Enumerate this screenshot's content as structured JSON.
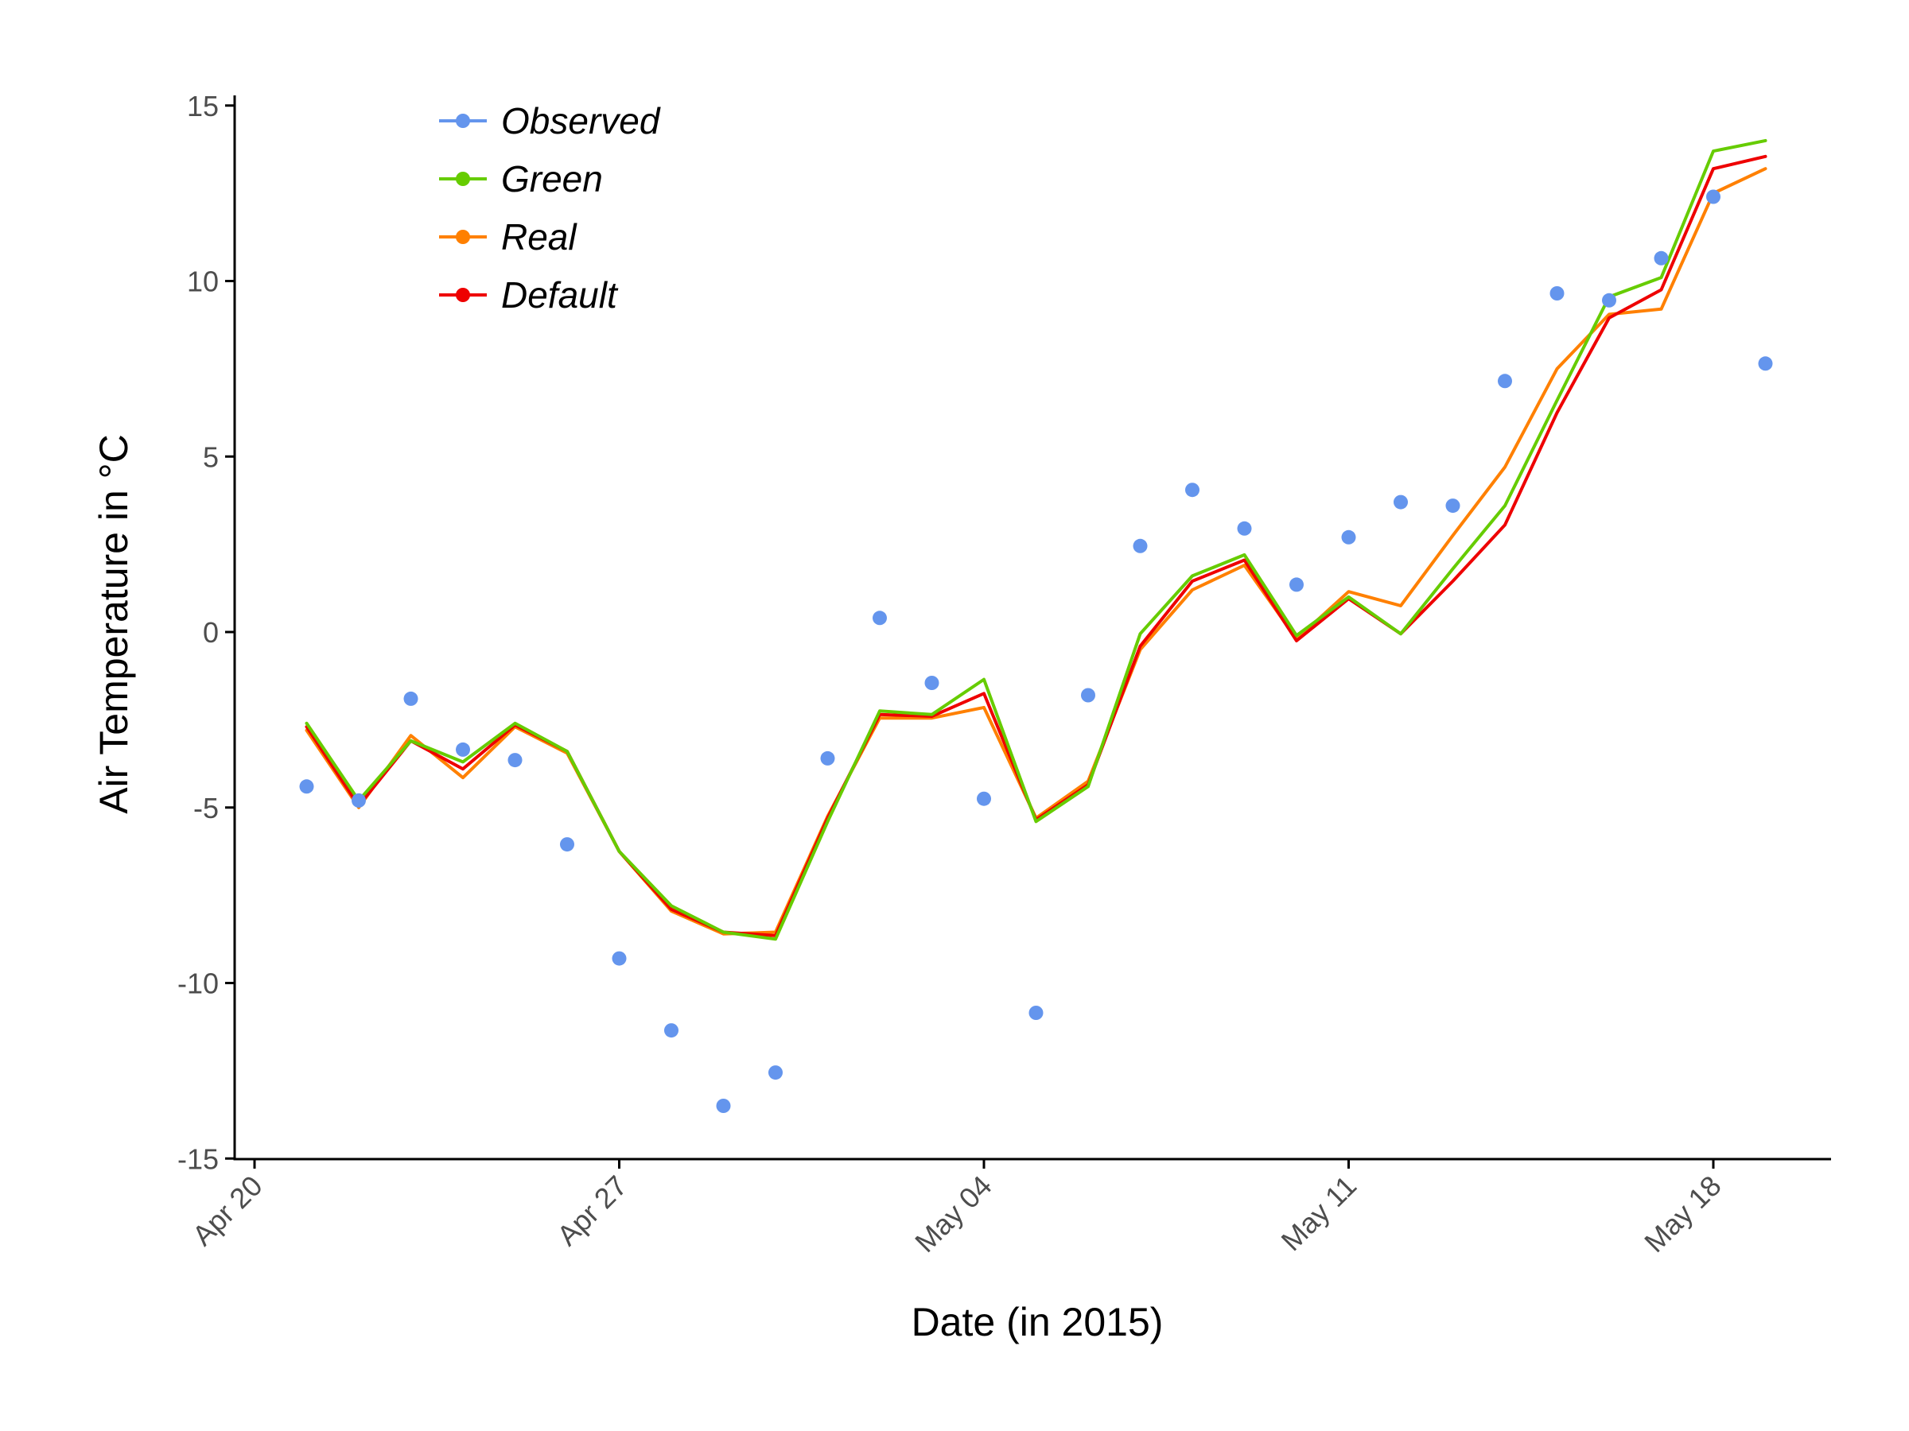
{
  "chart_data": {
    "type": "line",
    "xlabel": "Date (in 2015)",
    "ylabel": "Air Temperature in °C",
    "ylim": [
      -15,
      15
    ],
    "yticks": [
      -15,
      -10,
      -5,
      0,
      5,
      10,
      15
    ],
    "ytick_labels": [
      "-15",
      "-10",
      "-5",
      "0",
      "5",
      "10",
      "15"
    ],
    "xlim": [
      "2015-04-20",
      "2015-05-21"
    ],
    "xticks": [
      "2015-04-20",
      "2015-04-27",
      "2015-05-04",
      "2015-05-11",
      "2015-05-18"
    ],
    "xtick_labels": [
      "Apr 20",
      "Apr 27",
      "May 04",
      "May 11",
      "May 18"
    ],
    "dates": [
      "2015-04-21",
      "2015-04-22",
      "2015-04-23",
      "2015-04-24",
      "2015-04-25",
      "2015-04-26",
      "2015-04-27",
      "2015-04-28",
      "2015-04-29",
      "2015-04-30",
      "2015-05-01",
      "2015-05-02",
      "2015-05-03",
      "2015-05-04",
      "2015-05-05",
      "2015-05-06",
      "2015-05-07",
      "2015-05-08",
      "2015-05-09",
      "2015-05-10",
      "2015-05-11",
      "2015-05-12",
      "2015-05-13",
      "2015-05-14",
      "2015-05-15",
      "2015-05-16",
      "2015-05-17",
      "2015-05-18",
      "2015-05-19"
    ],
    "legend_position": "top-left",
    "grid": false,
    "series": [
      {
        "name": "Observed",
        "style": "points",
        "color": "#6495ED",
        "values": [
          -4.4,
          -4.8,
          -1.9,
          -3.35,
          -3.65,
          -6.05,
          -9.3,
          -11.35,
          -13.5,
          -12.55,
          -3.6,
          0.4,
          -1.45,
          -4.75,
          -10.85,
          -1.8,
          2.45,
          4.05,
          2.95,
          1.35,
          2.7,
          3.7,
          3.6,
          7.15,
          9.65,
          9.45,
          10.65,
          12.4,
          7.65
        ]
      },
      {
        "name": "Green",
        "style": "line",
        "color": "#66CC00",
        "values": [
          -2.6,
          -4.8,
          -3.1,
          -3.7,
          -2.6,
          -3.4,
          -6.25,
          -7.8,
          -8.55,
          -8.75,
          -5.4,
          -2.25,
          -2.35,
          -1.35,
          -5.4,
          -4.4,
          -0.05,
          1.6,
          2.2,
          -0.1,
          1.0,
          -0.05,
          1.8,
          3.6,
          6.6,
          9.55,
          10.1,
          13.7,
          14.0
        ]
      },
      {
        "name": "Real",
        "style": "line",
        "color": "#FF8000",
        "values": [
          -2.8,
          -5.0,
          -2.95,
          -4.15,
          -2.7,
          -3.45,
          -6.25,
          -7.95,
          -8.6,
          -8.55,
          -5.25,
          -2.45,
          -2.45,
          -2.15,
          -5.3,
          -4.25,
          -0.5,
          1.2,
          1.9,
          -0.2,
          1.15,
          0.75,
          2.75,
          4.7,
          7.5,
          9.05,
          9.2,
          12.5,
          13.2
        ]
      },
      {
        "name": "Default",
        "style": "line",
        "color": "#EE0000",
        "values": [
          -2.7,
          -4.95,
          -3.1,
          -3.9,
          -2.65,
          -3.4,
          -6.25,
          -7.9,
          -8.55,
          -8.65,
          -5.3,
          -2.35,
          -2.4,
          -1.75,
          -5.35,
          -4.35,
          -0.4,
          1.45,
          2.05,
          -0.25,
          0.95,
          -0.05,
          1.45,
          3.05,
          6.25,
          8.95,
          9.75,
          13.2,
          13.55
        ]
      }
    ]
  }
}
